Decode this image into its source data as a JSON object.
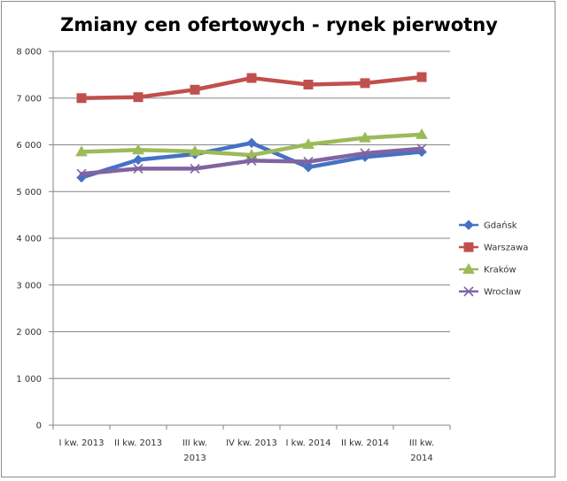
{
  "chart_data": {
    "type": "line",
    "title": "Zmiany cen ofertowych - rynek pierwotny",
    "xlabel": "",
    "ylabel": "",
    "categories": [
      "I kw. 2013",
      "II kw. 2013",
      "III kw. 2013",
      "IV kw. 2013",
      "I kw. 2014",
      "II kw. 2014",
      "III kw. 2014"
    ],
    "ylim": [
      0,
      8000
    ],
    "yticks": [
      0,
      1000,
      2000,
      3000,
      4000,
      5000,
      6000,
      7000,
      8000
    ],
    "ytick_labels": [
      "0",
      "1 000",
      "2 000",
      "3 000",
      "4 000",
      "5 000",
      "6 000",
      "7 000",
      "8 000"
    ],
    "grid": true,
    "legend_position": "right",
    "series": [
      {
        "name": "Gdańsk",
        "color": "#4472C4",
        "marker": "diamond",
        "values": [
          5300,
          5680,
          5800,
          6040,
          5520,
          5740,
          5850
        ]
      },
      {
        "name": "Warszawa",
        "color": "#C0504D",
        "marker": "square",
        "values": [
          7000,
          7020,
          7180,
          7430,
          7290,
          7320,
          7450
        ]
      },
      {
        "name": "Kraków",
        "color": "#9BBB59",
        "marker": "triangle",
        "values": [
          5850,
          5890,
          5860,
          5780,
          6010,
          6150,
          6220
        ]
      },
      {
        "name": "Wrocław",
        "color": "#8064A2",
        "marker": "x",
        "values": [
          5380,
          5490,
          5490,
          5660,
          5640,
          5820,
          5920
        ]
      }
    ]
  }
}
